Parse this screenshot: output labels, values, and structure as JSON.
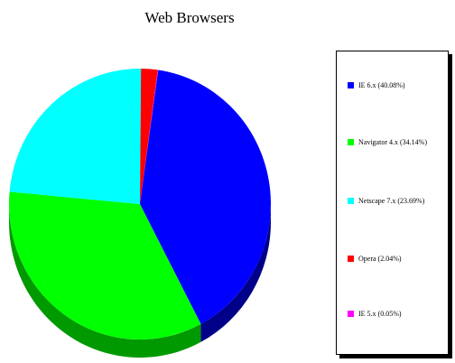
{
  "chart_data": {
    "type": "pie",
    "title": "Web Browsers",
    "slices": [
      {
        "label": "IE 6.x",
        "value": 40.08,
        "color": "#0000ff",
        "side_color": "#000088"
      },
      {
        "label": "Navigator 4.x",
        "value": 34.14,
        "color": "#00ff00",
        "side_color": "#009900"
      },
      {
        "label": "Netscape 7.x",
        "value": 23.69,
        "color": "#00ffff",
        "side_color": "#009999"
      },
      {
        "label": "Opera",
        "value": 2.04,
        "color": "#ff0000",
        "side_color": "#990000"
      },
      {
        "label": "IE 5.x",
        "value": 0.05,
        "color": "#ff00ff",
        "side_color": "#990099"
      }
    ],
    "legend": {
      "position": "right",
      "entries": [
        "IE 6.x (40.08%)",
        "Navigator 4.x (34.14%)",
        "Netscape 7.x (23.69%)",
        "Opera (2.04%)",
        "IE 5.x (0.05%)"
      ]
    },
    "style": "3d"
  }
}
